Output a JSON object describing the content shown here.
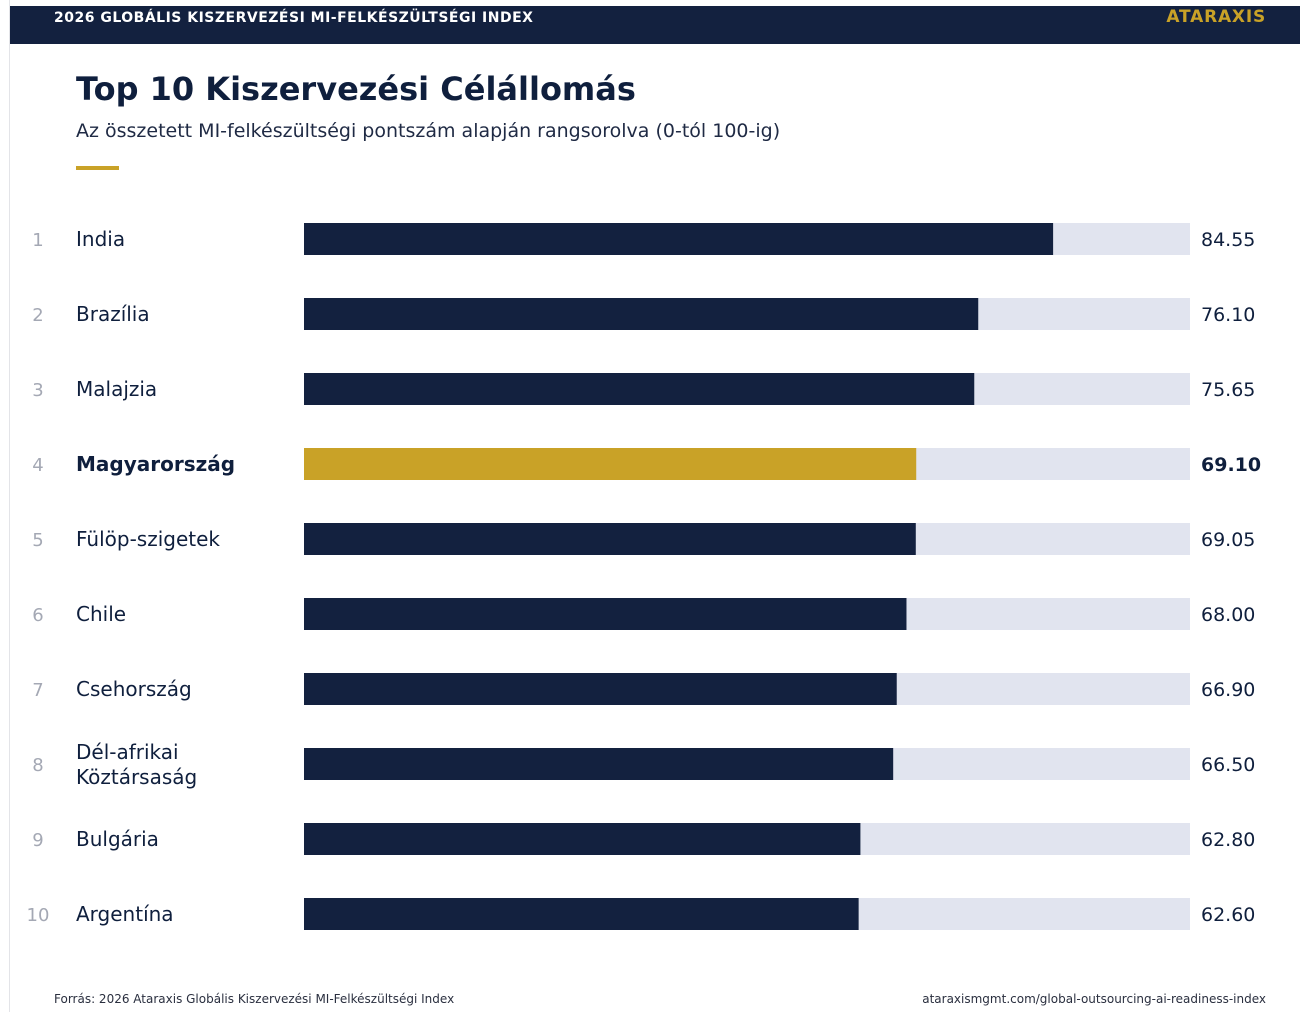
{
  "header": {
    "title": "2026 GLOBÁLIS KISZERVEZÉSI MI-FELKÉSZÜLTSÉGI INDEX",
    "brand": "ATARAXIS"
  },
  "main": {
    "title": "Top 10 Kiszervezési Célállomás",
    "subtitle": "Az összetett MI-felkészültségi pontszám alapján rangsorolva (0-tól 100-ig)"
  },
  "footer": {
    "source": "Forrás: 2026 Ataraxis Globális Kiszervezési MI-Felkészültségi Index",
    "url": "ataraxismgmt.com/global-outsourcing-ai-readiness-index"
  },
  "colors": {
    "bar": "#13213f",
    "highlight": "#c9a227",
    "track": "#e1e4ef",
    "rank": "#a4a8b4"
  },
  "chart_data": {
    "type": "bar",
    "orientation": "horizontal",
    "xlim": [
      0,
      100
    ],
    "grid": false,
    "highlight_category": "Magyarország",
    "ranks": [
      "1",
      "2",
      "3",
      "4",
      "5",
      "6",
      "7",
      "8",
      "9",
      "10"
    ],
    "categories": [
      "India",
      "Brazília",
      "Malajzia",
      "Magyarország",
      "Fülöp-szigetek",
      "Chile",
      "Csehország",
      "Dél-afrikai Köztársaság",
      "Bulgária",
      "Argentína"
    ],
    "category_lines": [
      [
        "India"
      ],
      [
        "Brazília"
      ],
      [
        "Malajzia"
      ],
      [
        "Magyarország"
      ],
      [
        "Fülöp-szigetek"
      ],
      [
        "Chile"
      ],
      [
        "Csehország"
      ],
      [
        "Dél-afrikai",
        "Köztársaság"
      ],
      [
        "Bulgária"
      ],
      [
        "Argentína"
      ]
    ],
    "values": [
      84.55,
      76.1,
      75.65,
      69.1,
      69.05,
      68.0,
      66.9,
      66.5,
      62.8,
      62.6
    ],
    "value_labels": [
      "84.55",
      "76.10",
      "75.65",
      "69.10",
      "69.05",
      "68.00",
      "66.90",
      "66.50",
      "62.80",
      "62.60"
    ]
  }
}
